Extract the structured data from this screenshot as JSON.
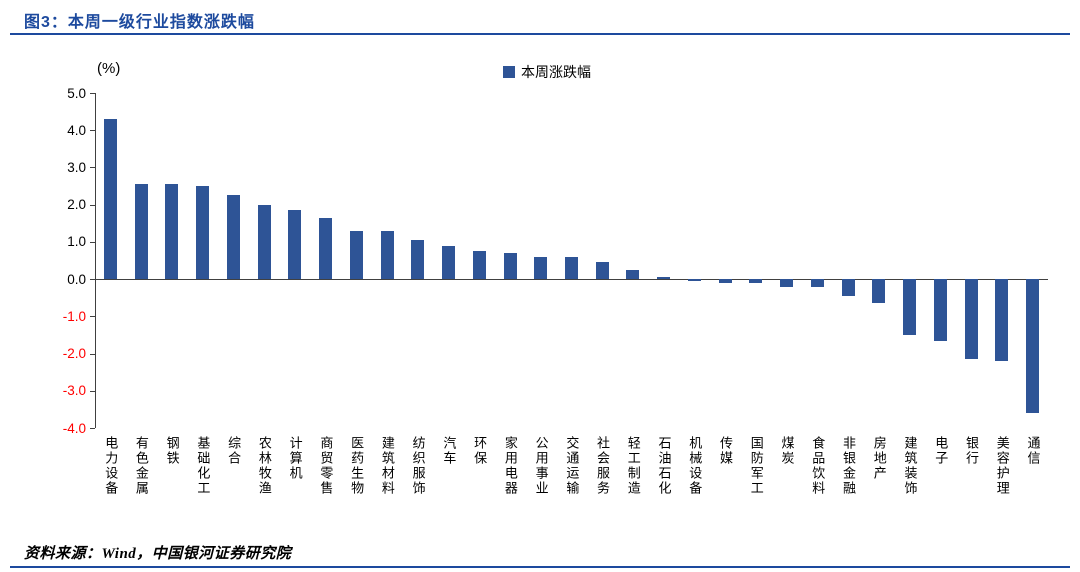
{
  "header": {
    "title": "图3：本周一级行业指数涨跌幅"
  },
  "legend": {
    "label": "本周涨跌幅"
  },
  "axis": {
    "unit_label": "(%)"
  },
  "footer": {
    "source": "资料来源：Wind，中国银河证券研究院"
  },
  "colors": {
    "bar": "#2e5496",
    "accent": "#1d4a9e",
    "negative_tick": "#ff0000",
    "axis": "#404040"
  },
  "chart_data": {
    "type": "bar",
    "title": "本周一级行业指数涨跌幅",
    "legend": "本周涨跌幅",
    "ylabel": "(%)",
    "xlabel": "",
    "ylim": [
      -4.0,
      5.0
    ],
    "yticks": [
      5.0,
      4.0,
      3.0,
      2.0,
      1.0,
      0.0,
      -1.0,
      -2.0,
      -3.0,
      -4.0
    ],
    "grid": false,
    "legend_position": "top-center",
    "categories": [
      "电力设备",
      "有色金属",
      "钢铁",
      "基础化工",
      "综合",
      "农林牧渔",
      "计算机",
      "商贸零售",
      "医药生物",
      "建筑材料",
      "纺织服饰",
      "汽车",
      "环保",
      "家用电器",
      "公用事业",
      "交通运输",
      "社会服务",
      "轻工制造",
      "石油石化",
      "机械设备",
      "传媒",
      "国防军工",
      "煤炭",
      "食品饮料",
      "非银金融",
      "房地产",
      "建筑装饰",
      "电子",
      "银行",
      "美容护理",
      "通信"
    ],
    "values": [
      4.3,
      2.55,
      2.55,
      2.5,
      2.25,
      2.0,
      1.85,
      1.65,
      1.3,
      1.3,
      1.05,
      0.9,
      0.75,
      0.7,
      0.6,
      0.6,
      0.45,
      0.25,
      0.05,
      -0.05,
      -0.1,
      -0.1,
      -0.2,
      -0.2,
      -0.45,
      -0.65,
      -1.5,
      -1.65,
      -2.15,
      -2.2,
      -3.6
    ]
  }
}
